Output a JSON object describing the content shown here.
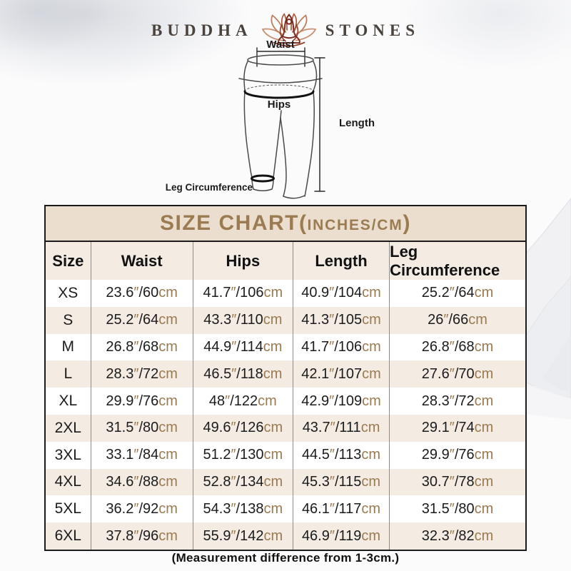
{
  "brand": {
    "left": "BUDDHA",
    "right": "STONES",
    "icon": "lotus-meditation-icon"
  },
  "diagram": {
    "waist_label": "Waist",
    "hips_label": "Hips",
    "length_label": "Length",
    "leg_label": "Leg Circumference"
  },
  "size_chart": {
    "title_main": "SIZE CHART(",
    "title_sub": "INCHES/CM",
    "title_close": ")",
    "accent_color": "#9b7b51",
    "band_bg": "#ecdecf",
    "stripe_bg": "#f4ebe3"
  },
  "chart_data": {
    "type": "table",
    "title": "SIZE CHART(INCHES/CM)",
    "columns": [
      "Size",
      "Waist",
      "Hips",
      "Length",
      "Leg Circumference"
    ],
    "rows": [
      [
        "XS",
        "23.6\"/60cm",
        "41.7\"/106cm",
        "40.9\"/104cm",
        "25.2\"/64cm"
      ],
      [
        "S",
        "25.2\"/64cm",
        "43.3\"/110cm",
        "41.3\"/105cm",
        "26\"/66cm"
      ],
      [
        "M",
        "26.8\"/68cm",
        "44.9\"/114cm",
        "41.7\"/106cm",
        "26.8\"/68cm"
      ],
      [
        "L",
        "28.3\"/72cm",
        "46.5\"/118cm",
        "42.1\"/107cm",
        "27.6\"/70cm"
      ],
      [
        "XL",
        "29.9\"/76cm",
        "48\"/122cm",
        "42.9\"/109cm",
        "28.3\"/72cm"
      ],
      [
        "2XL",
        "31.5\"/80cm",
        "49.6\"/126cm",
        "43.7\"/111cm",
        "29.1\"/74cm"
      ],
      [
        "3XL",
        "33.1\"/84cm",
        "51.2\"/130cm",
        "44.5\"/113cm",
        "29.9\"/76cm"
      ],
      [
        "4XL",
        "34.6\"/88cm",
        "52.8\"/134cm",
        "45.3\"/115cm",
        "30.7\"/78cm"
      ],
      [
        "5XL",
        "36.2\"/92cm",
        "54.3\"/138cm",
        "46.1\"/117cm",
        "31.5\"/80cm"
      ],
      [
        "6XL",
        "37.8\"/96cm",
        "55.9\"/142cm",
        "46.9\"/119cm",
        "32.3\"/82cm"
      ]
    ],
    "footnote": "(Measurement difference from 1-3cm.)"
  },
  "footnote": "(Measurement difference from 1-3cm.)"
}
